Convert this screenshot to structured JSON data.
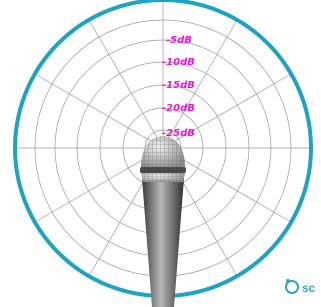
{
  "diagram": {
    "ring_labels": [
      "-5dB",
      "-10dB",
      "-15dB",
      "-20dB",
      "-25dB"
    ],
    "logo": "sc"
  }
}
